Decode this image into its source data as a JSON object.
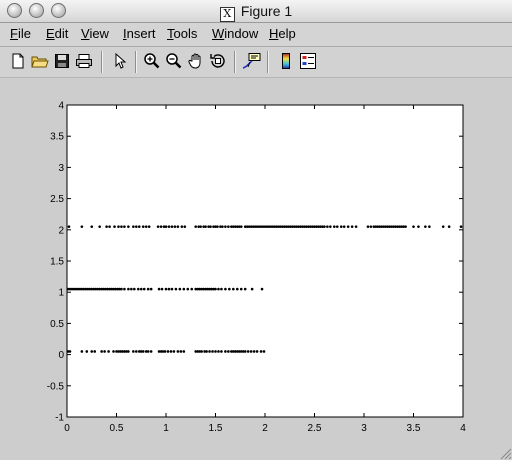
{
  "window": {
    "title": "Figure 1"
  },
  "menu": {
    "items": [
      {
        "label": "File",
        "mnemonic": "F",
        "rest": "ile"
      },
      {
        "label": "Edit",
        "mnemonic": "E",
        "rest": "dit"
      },
      {
        "label": "View",
        "mnemonic": "V",
        "rest": "iew"
      },
      {
        "label": "Insert",
        "mnemonic": "I",
        "rest": "nsert"
      },
      {
        "label": "Tools",
        "mnemonic": "T",
        "rest": "ools"
      },
      {
        "label": "Window",
        "mnemonic": "W",
        "rest": "indow"
      },
      {
        "label": "Help",
        "mnemonic": "H",
        "rest": "elp"
      }
    ]
  },
  "toolbar": {
    "icons": [
      "new-file-icon",
      "open-folder-icon",
      "save-icon",
      "print-icon",
      "pointer-arrow-icon",
      "zoom-in-icon",
      "zoom-out-icon",
      "pan-hand-icon",
      "rotate-3d-icon",
      "data-cursor-icon",
      "colorbar-icon",
      "legend-icon"
    ]
  },
  "chart_data": {
    "type": "scatter",
    "title": "",
    "xlabel": "",
    "ylabel": "",
    "xlim": [
      0,
      4
    ],
    "ylim": [
      -1,
      4
    ],
    "xticks": [
      "0",
      "0.5",
      "1",
      "1.5",
      "2",
      "2.5",
      "3",
      "3.5",
      "4"
    ],
    "yticks": [
      "-1",
      "-0.5",
      "0",
      "0.5",
      "1",
      "1.5",
      "2",
      "2.5",
      "3",
      "3.5",
      "4"
    ],
    "grid": false,
    "marker": "dot",
    "marker_color": "#000000",
    "series": [
      {
        "y": 0.05,
        "x": [
          0.01,
          0.03,
          0.15,
          0.2,
          0.25,
          0.28,
          0.35,
          0.38,
          0.42,
          0.47,
          0.5,
          0.52,
          0.54,
          0.56,
          0.58,
          0.6,
          0.62,
          0.67,
          0.7,
          0.73,
          0.75,
          0.77,
          0.8,
          0.82,
          0.85,
          0.93,
          0.95,
          0.97,
          0.99,
          1.02,
          1.05,
          1.08,
          1.12,
          1.15,
          1.18,
          1.3,
          1.32,
          1.34,
          1.36,
          1.39,
          1.41,
          1.44,
          1.47,
          1.5,
          1.53,
          1.56,
          1.6,
          1.63,
          1.66,
          1.68,
          1.7,
          1.72,
          1.74,
          1.76,
          1.78,
          1.8,
          1.83,
          1.86,
          1.89,
          1.92,
          1.96,
          1.99
        ]
      },
      {
        "y": 1.05,
        "x": [
          0.01,
          0.03,
          0.05,
          0.07,
          0.09,
          0.11,
          0.13,
          0.15,
          0.17,
          0.19,
          0.21,
          0.23,
          0.25,
          0.27,
          0.29,
          0.31,
          0.33,
          0.35,
          0.37,
          0.39,
          0.41,
          0.43,
          0.45,
          0.47,
          0.49,
          0.51,
          0.53,
          0.55,
          0.58,
          0.62,
          0.65,
          0.68,
          0.72,
          0.75,
          0.78,
          0.82,
          0.85,
          0.93,
          0.96,
          1.0,
          1.03,
          1.06,
          1.1,
          1.14,
          1.18,
          1.22,
          1.26,
          1.3,
          1.32,
          1.34,
          1.36,
          1.38,
          1.4,
          1.42,
          1.44,
          1.46,
          1.48,
          1.5,
          1.53,
          1.56,
          1.6,
          1.64,
          1.68,
          1.72,
          1.76,
          1.8,
          1.87,
          1.97
        ]
      },
      {
        "y": 2.05,
        "x": [
          0.02,
          0.15,
          0.25,
          0.33,
          0.4,
          0.43,
          0.48,
          0.52,
          0.55,
          0.58,
          0.62,
          0.67,
          0.7,
          0.73,
          0.77,
          0.8,
          0.83,
          0.92,
          0.95,
          0.98,
          1.0,
          1.03,
          1.06,
          1.09,
          1.12,
          1.16,
          1.19,
          1.3,
          1.33,
          1.35,
          1.38,
          1.4,
          1.43,
          1.45,
          1.48,
          1.5,
          1.52,
          1.55,
          1.57,
          1.6,
          1.63,
          1.66,
          1.68,
          1.7,
          1.72,
          1.74,
          1.76,
          1.8,
          1.82,
          1.84,
          1.86,
          1.88,
          1.9,
          1.92,
          1.94,
          1.96,
          1.98,
          2.0,
          2.02,
          2.04,
          2.06,
          2.08,
          2.1,
          2.12,
          2.14,
          2.16,
          2.18,
          2.2,
          2.22,
          2.24,
          2.26,
          2.28,
          2.3,
          2.32,
          2.34,
          2.36,
          2.38,
          2.4,
          2.42,
          2.44,
          2.46,
          2.48,
          2.5,
          2.52,
          2.54,
          2.56,
          2.58,
          2.6,
          2.63,
          2.66,
          2.7,
          2.73,
          2.77,
          2.8,
          2.84,
          2.88,
          2.92,
          3.04,
          3.07,
          3.1,
          3.12,
          3.14,
          3.16,
          3.18,
          3.2,
          3.22,
          3.24,
          3.26,
          3.28,
          3.3,
          3.32,
          3.34,
          3.36,
          3.38,
          3.4,
          3.42,
          3.5,
          3.55,
          3.62,
          3.66,
          3.8,
          3.86,
          3.98
        ]
      }
    ]
  }
}
